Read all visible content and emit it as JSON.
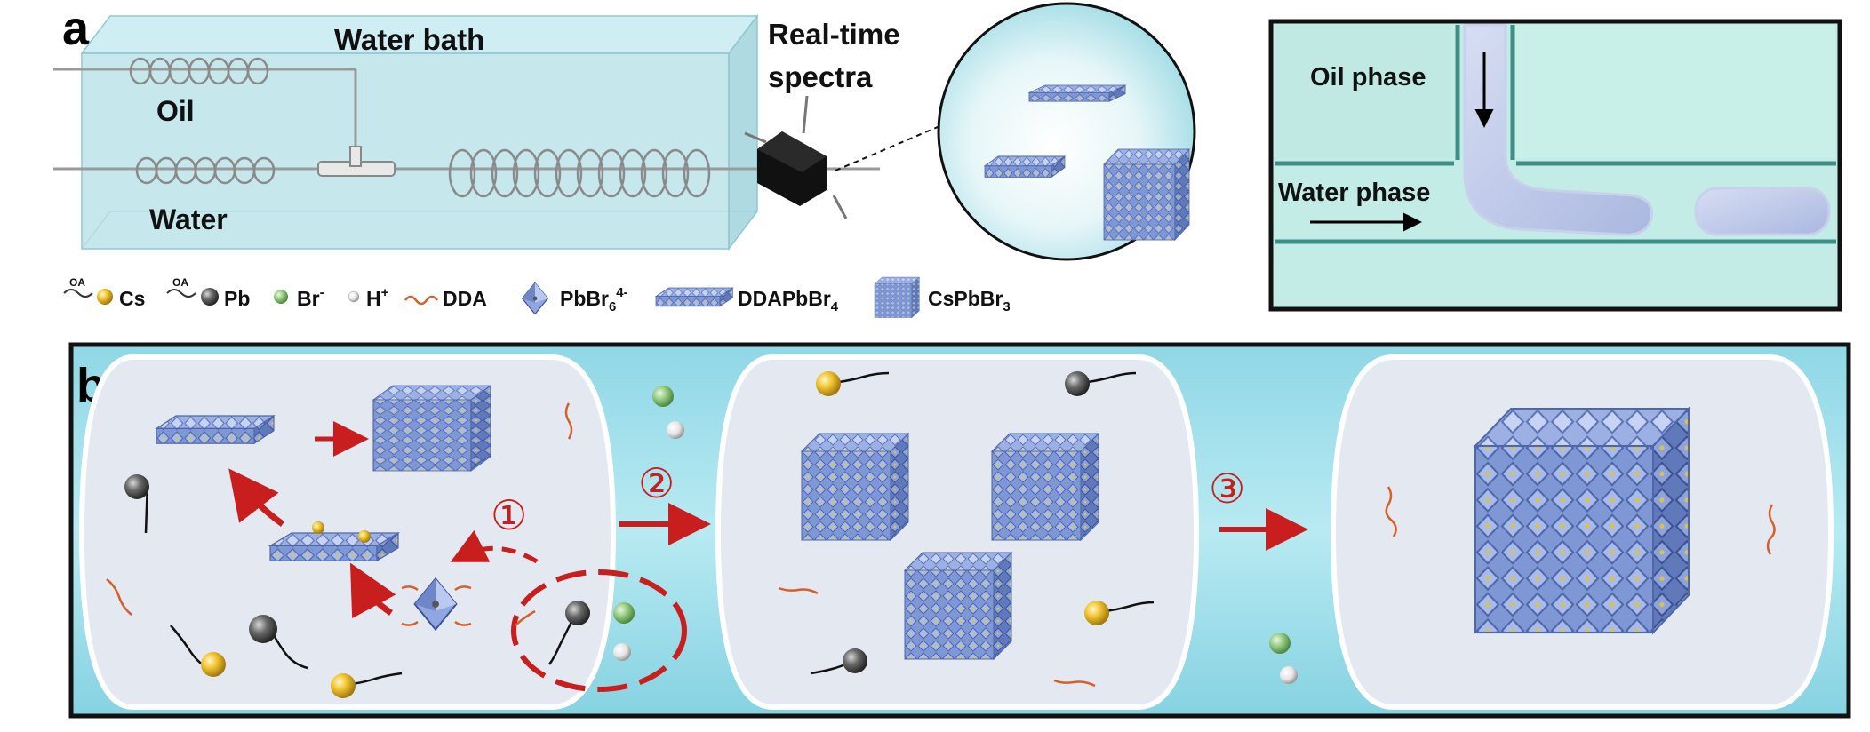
{
  "panel_a": {
    "letter": "a",
    "water_bath_label": "Water bath",
    "oil_label": "Oil",
    "water_label": "Water",
    "spectra_label_line1": "Real-time",
    "spectra_label_line2": "spectra"
  },
  "panel_a_inset": {
    "oil_phase_label": "Oil phase",
    "water_phase_label": "Water phase"
  },
  "legend": {
    "oa_tag": "OA",
    "items": [
      {
        "name": "Cs",
        "icon": "oleate-cs-icon"
      },
      {
        "name": "Pb",
        "icon": "oleate-pb-icon"
      },
      {
        "name": "Br",
        "sup": "-",
        "icon": "bromide-sphere-icon"
      },
      {
        "name": "H",
        "sup": "+",
        "icon": "proton-sphere-icon"
      },
      {
        "name": "DDA",
        "icon": "dda-chain-icon"
      },
      {
        "name": "PbBr",
        "sub": "6",
        "sup": "4-",
        "icon": "octahedron-icon"
      },
      {
        "name": "DDAPbBr",
        "sub": "4",
        "icon": "nanosheet-icon"
      },
      {
        "name": "CsPbBr",
        "sub": "3",
        "icon": "nanocube-icon"
      }
    ]
  },
  "panel_b": {
    "letter": "b",
    "step1": "①",
    "step2": "②",
    "step3": "③"
  },
  "colors": {
    "bath_fill": "#a7dbe4",
    "inset_bg": "#c4ece6",
    "channel_edge": "#3d8f86",
    "droplet": "#b9c6e8",
    "arrow_red": "#c81e1e",
    "cs_gold": "#f0c230",
    "pb_gray": "#5a5a5a",
    "br_green": "#8cc57a",
    "crystal_blue": "#7f97d4",
    "dda_orange": "#d6602a"
  }
}
